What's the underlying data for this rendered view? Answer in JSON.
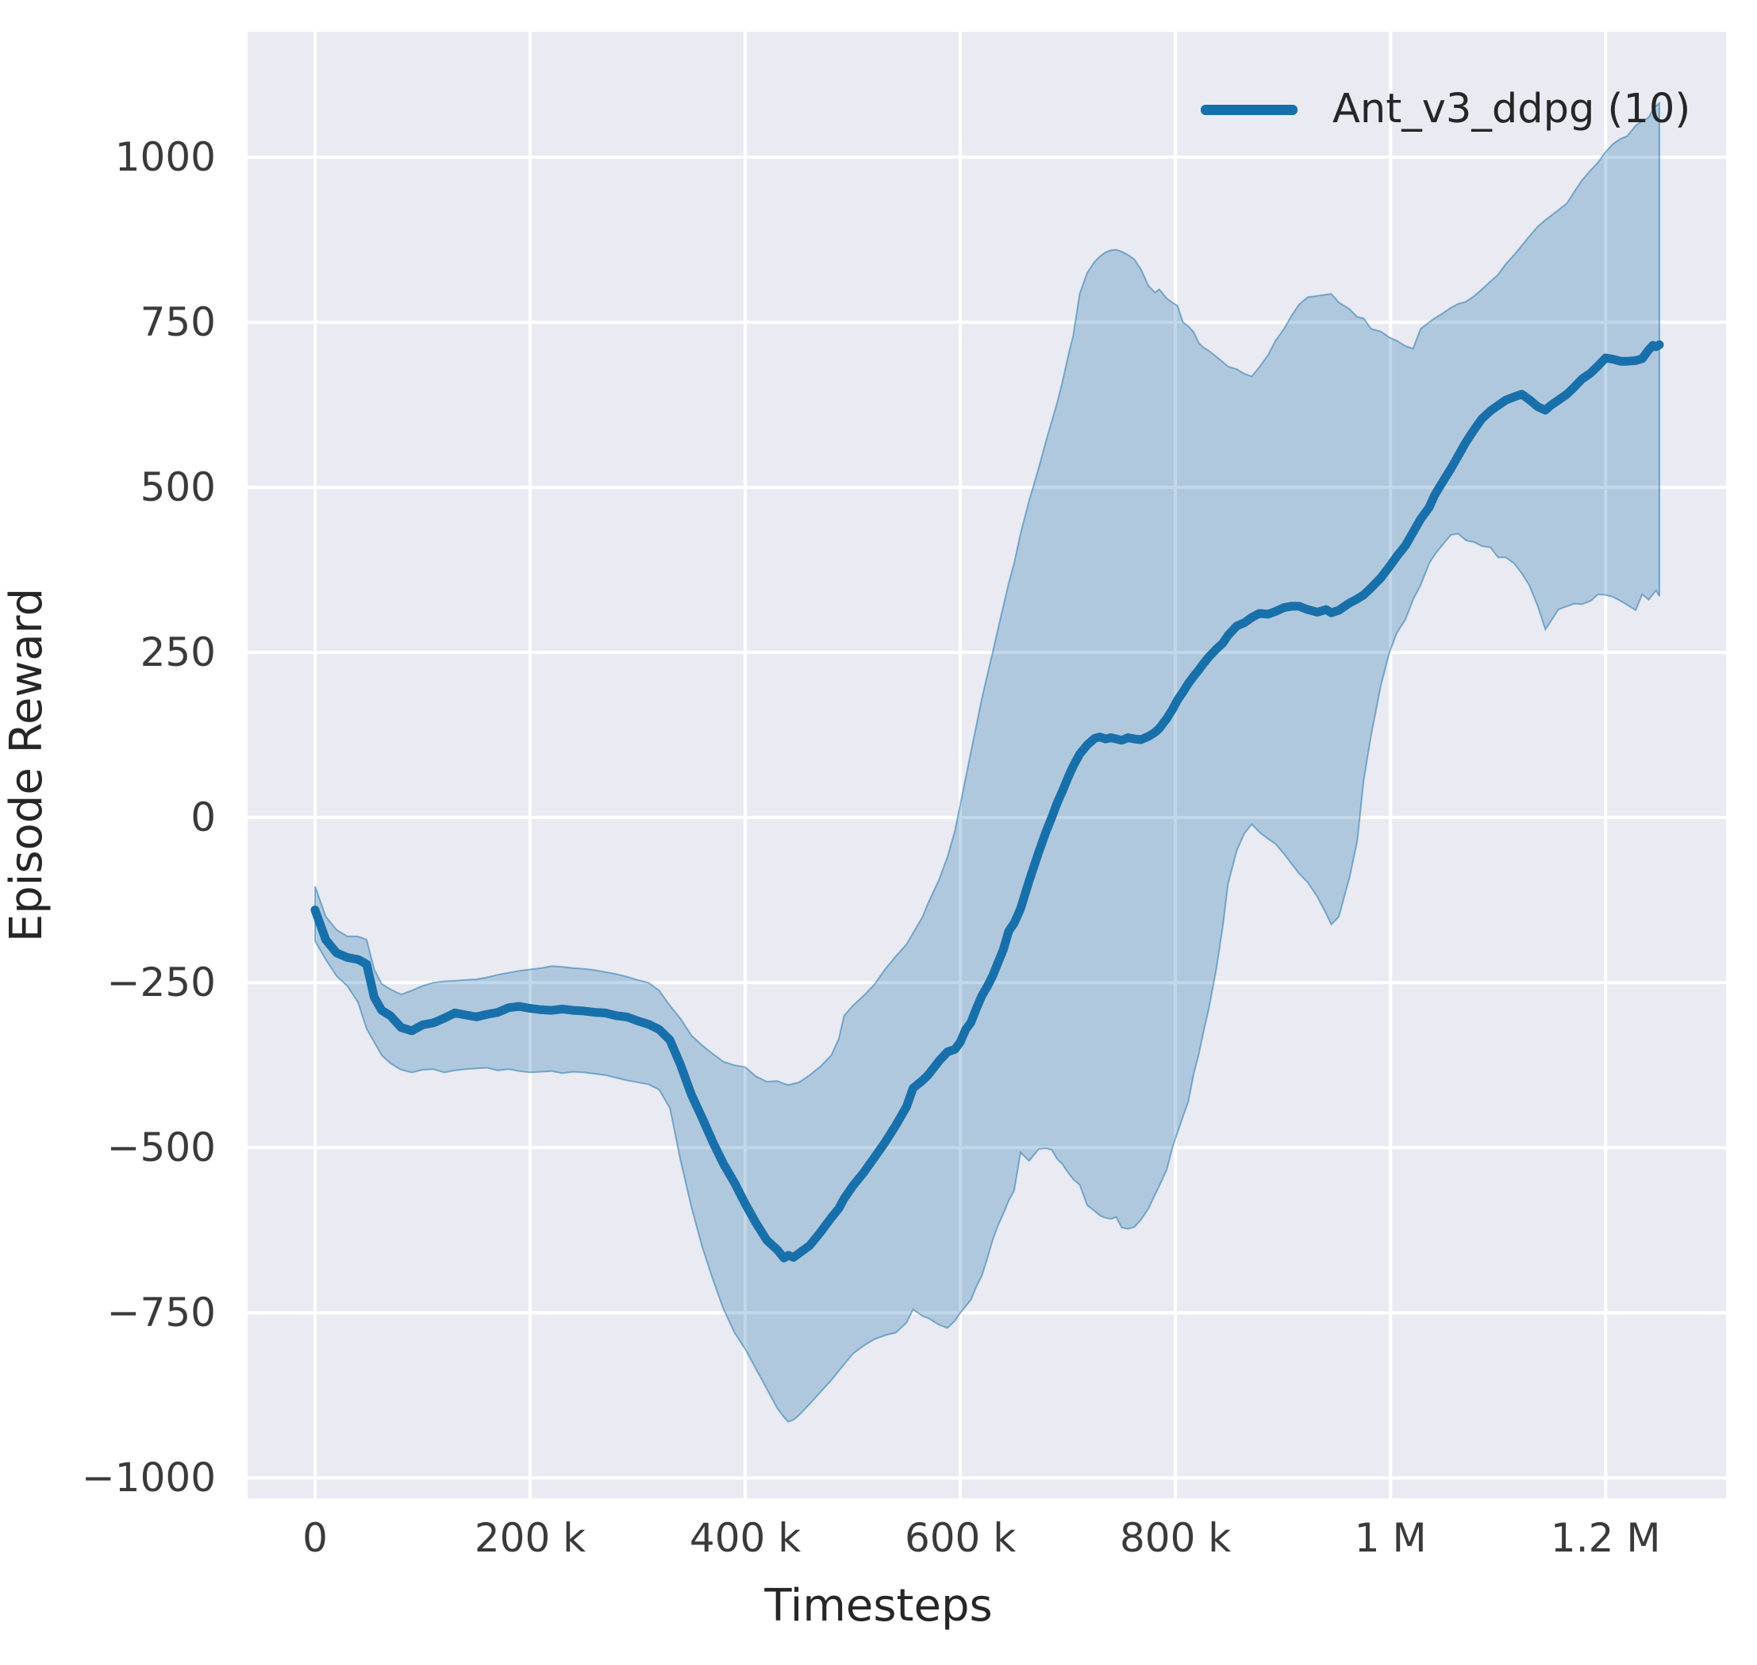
{
  "figure": {
    "panel_color": "#eaeaf2",
    "grid_color": "#ffffff",
    "text_color": "#262626",
    "tick_color": "#3a3a3a"
  },
  "chart_data": {
    "type": "line",
    "title": "",
    "xlabel": "Timesteps",
    "ylabel": "Episode Reward",
    "grid": true,
    "legend_position": "upper right",
    "x_unit": 1000,
    "xlim": [
      -62.7,
      1312
    ],
    "ylim": [
      -1031,
      1190
    ],
    "x_ticks": [
      {
        "v": 0,
        "label": "0"
      },
      {
        "v": 200,
        "label": "200 k"
      },
      {
        "v": 400,
        "label": "400 k"
      },
      {
        "v": 600,
        "label": "600 k"
      },
      {
        "v": 800,
        "label": "800 k"
      },
      {
        "v": 1000,
        "label": "1 M"
      },
      {
        "v": 1200,
        "label": "1.2 M"
      }
    ],
    "y_ticks": [
      {
        "v": 1000,
        "label": "1000"
      },
      {
        "v": 750,
        "label": "750"
      },
      {
        "v": 500,
        "label": "500"
      },
      {
        "v": 250,
        "label": "250"
      },
      {
        "v": 0,
        "label": "0"
      },
      {
        "v": -250,
        "label": "−250"
      },
      {
        "v": -500,
        "label": "−500"
      },
      {
        "v": -750,
        "label": "−750"
      },
      {
        "v": -1000,
        "label": "−1000"
      }
    ],
    "series": [
      {
        "name": "Ant_v3_ddpg (10)",
        "color": "#1870ab",
        "line_width": 11,
        "band_fill_alpha": 0.27,
        "band_edge_alpha": 0.5,
        "x": [
          0,
          10,
          20,
          30,
          40,
          48,
          55,
          62,
          70,
          80,
          90,
          100,
          110,
          120,
          130,
          140,
          150,
          160,
          170,
          180,
          190,
          200,
          210,
          220,
          230,
          240,
          250,
          260,
          270,
          280,
          290,
          300,
          310,
          320,
          330,
          340,
          350,
          360,
          370,
          380,
          390,
          400,
          410,
          420,
          430,
          436,
          440,
          445,
          450,
          460,
          470,
          480,
          487,
          492,
          500,
          510,
          520,
          530,
          540,
          550,
          556,
          565,
          570,
          580,
          588,
          595,
          600,
          605,
          610,
          615,
          620,
          625,
          630,
          635,
          640,
          645,
          650,
          656,
          664,
          673,
          680,
          685,
          690,
          695,
          700,
          705,
          711,
          718,
          725,
          730,
          735,
          740,
          745,
          750,
          756,
          762,
          768,
          775,
          781,
          785,
          792,
          797,
          802,
          807,
          812,
          817,
          822,
          826,
          831,
          838,
          844,
          849,
          857,
          864,
          871,
          878,
          886,
          893,
          901,
          908,
          915,
          923,
          932,
          940,
          945,
          952,
          962,
          969,
          975,
          982,
          991,
          999,
          1006,
          1014,
          1021,
          1028,
          1036,
          1041,
          1048,
          1056,
          1063,
          1070,
          1078,
          1085,
          1093,
          1100,
          1107,
          1115,
          1122,
          1129,
          1137,
          1144,
          1149,
          1156,
          1164,
          1171,
          1178,
          1186,
          1193,
          1200,
          1207,
          1214,
          1220,
          1228,
          1234,
          1240,
          1244,
          1247,
          1250
        ],
        "mean": [
          -140,
          -185,
          -205,
          -212,
          -215,
          -222,
          -272,
          -292,
          -300,
          -318,
          -323,
          -314,
          -311,
          -304,
          -296,
          -299,
          -302,
          -298,
          -295,
          -288,
          -286,
          -289,
          -291,
          -292,
          -290,
          -292,
          -293,
          -295,
          -296,
          -300,
          -302,
          -308,
          -313,
          -321,
          -337,
          -375,
          -420,
          -455,
          -492,
          -525,
          -553,
          -585,
          -614,
          -640,
          -655,
          -667,
          -663,
          -666,
          -660,
          -648,
          -628,
          -606,
          -592,
          -577,
          -558,
          -538,
          -515,
          -492,
          -466,
          -438,
          -410,
          -398,
          -390,
          -369,
          -355,
          -351,
          -340,
          -321,
          -310,
          -289,
          -270,
          -256,
          -240,
          -220,
          -200,
          -172,
          -160,
          -138,
          -96,
          -52,
          -20,
          0,
          22,
          40,
          60,
          78,
          96,
          110,
          120,
          122,
          119,
          121,
          119,
          117,
          121,
          119,
          118,
          123,
          129,
          135,
          150,
          163,
          178,
          190,
          203,
          214,
          224,
          233,
          243,
          255,
          264,
          276,
          290,
          295,
          303,
          309,
          308,
          312,
          318,
          320,
          320,
          315,
          311,
          315,
          310,
          314,
          325,
          331,
          337,
          348,
          363,
          380,
          396,
          412,
          432,
          452,
          470,
          488,
          507,
          528,
          548,
          568,
          588,
          604,
          616,
          624,
          632,
          637,
          641,
          633,
          622,
          617,
          624,
          632,
          641,
          652,
          664,
          673,
          684,
          696,
          694,
          691,
          691,
          692,
          695,
          708,
          715,
          713,
          716
        ],
        "band_low": [
          -187,
          -215,
          -240,
          -255,
          -280,
          -320,
          -340,
          -360,
          -372,
          -382,
          -386,
          -382,
          -381,
          -386,
          -383,
          -381,
          -380,
          -379,
          -383,
          -381,
          -384,
          -386,
          -385,
          -384,
          -387,
          -385,
          -386,
          -388,
          -390,
          -394,
          -398,
          -401,
          -404,
          -412,
          -440,
          -520,
          -590,
          -650,
          -700,
          -745,
          -780,
          -805,
          -835,
          -865,
          -895,
          -908,
          -915,
          -912,
          -905,
          -888,
          -870,
          -852,
          -838,
          -828,
          -812,
          -800,
          -790,
          -784,
          -780,
          -765,
          -745,
          -755,
          -758,
          -768,
          -773,
          -762,
          -750,
          -740,
          -730,
          -710,
          -694,
          -668,
          -640,
          -618,
          -600,
          -580,
          -565,
          -507,
          -520,
          -502,
          -501,
          -503,
          -517,
          -525,
          -537,
          -548,
          -556,
          -587,
          -596,
          -603,
          -606,
          -608,
          -605,
          -621,
          -623,
          -620,
          -609,
          -592,
          -571,
          -558,
          -533,
          -501,
          -477,
          -453,
          -430,
          -388,
          -357,
          -325,
          -290,
          -230,
          -165,
          -100,
          -50,
          -24,
          -10,
          -22,
          -32,
          -40,
          -55,
          -70,
          -85,
          -98,
          -120,
          -145,
          -162,
          -150,
          -90,
          -36,
          56,
          125,
          200,
          250,
          280,
          300,
          330,
          352,
          385,
          398,
          412,
          428,
          430,
          420,
          417,
          411,
          409,
          394,
          394,
          385,
          370,
          352,
          320,
          285,
          297,
          315,
          320,
          324,
          323,
          328,
          338,
          337,
          334,
          328,
          322,
          314,
          338,
          330,
          338,
          344,
          335
        ],
        "band_high": [
          -104,
          -150,
          -170,
          -180,
          -180,
          -185,
          -230,
          -252,
          -260,
          -268,
          -262,
          -255,
          -250,
          -248,
          -247,
          -246,
          -245,
          -242,
          -238,
          -235,
          -232,
          -230,
          -228,
          -225,
          -226,
          -228,
          -229,
          -231,
          -234,
          -237,
          -241,
          -246,
          -250,
          -262,
          -285,
          -305,
          -330,
          -345,
          -358,
          -370,
          -375,
          -378,
          -392,
          -400,
          -399,
          -403,
          -405,
          -403,
          -401,
          -390,
          -377,
          -360,
          -335,
          -300,
          -285,
          -270,
          -253,
          -230,
          -210,
          -192,
          -175,
          -150,
          -130,
          -95,
          -60,
          -20,
          20,
          60,
          100,
          140,
          180,
          215,
          250,
          285,
          320,
          355,
          385,
          430,
          480,
          530,
          572,
          600,
          628,
          660,
          697,
          730,
          793,
          825,
          842,
          850,
          856,
          859,
          860,
          857,
          852,
          845,
          830,
          805,
          795,
          800,
          786,
          780,
          775,
          750,
          744,
          735,
          718,
          712,
          707,
          698,
          690,
          683,
          679,
          672,
          668,
          682,
          700,
          722,
          740,
          760,
          777,
          788,
          790,
          792,
          793,
          780,
          770,
          758,
          756,
          740,
          736,
          727,
          722,
          714,
          710,
          740,
          750,
          756,
          763,
          772,
          778,
          781,
          790,
          800,
          812,
          822,
          838,
          852,
          866,
          880,
          895,
          905,
          911,
          920,
          930,
          948,
          965,
          980,
          992,
          1008,
          1020,
          1028,
          1032,
          1048,
          1055,
          1060,
          1072,
          1078,
          1082
        ]
      }
    ]
  }
}
